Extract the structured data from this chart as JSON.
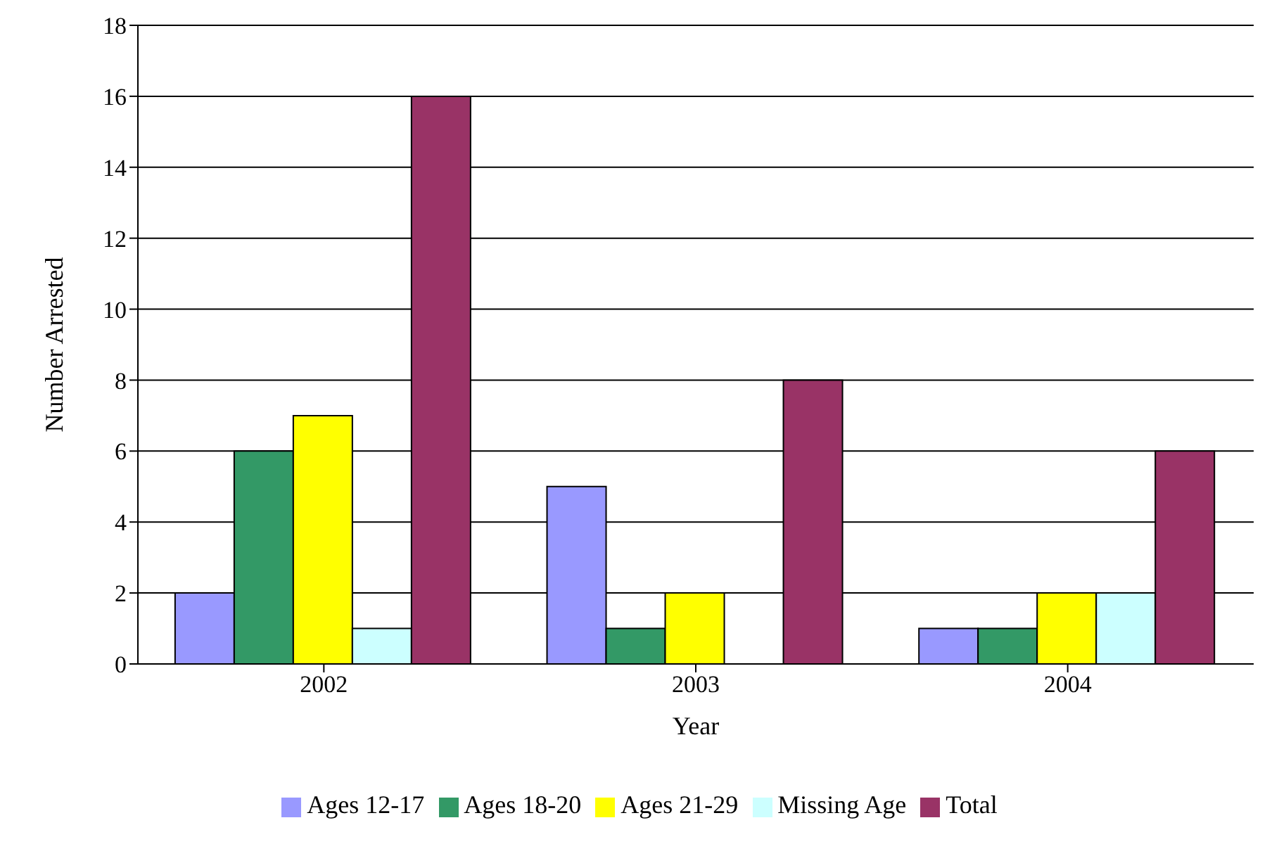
{
  "chart_data": {
    "type": "bar",
    "xlabel": "Year",
    "ylabel": "Number Arrested",
    "categories": [
      "2002",
      "2003",
      "2004"
    ],
    "series": [
      {
        "name": "Ages 12-17",
        "color": "#9999ff",
        "values": [
          2,
          5,
          1
        ]
      },
      {
        "name": "Ages 18-20",
        "color": "#339966",
        "values": [
          6,
          1,
          1
        ]
      },
      {
        "name": "Ages 21-29",
        "color": "#ffff00",
        "values": [
          7,
          2,
          2
        ]
      },
      {
        "name": "Missing Age",
        "color": "#ccffff",
        "values": [
          1,
          0,
          2
        ]
      },
      {
        "name": "Total",
        "color": "#993366",
        "values": [
          16,
          8,
          6
        ]
      }
    ],
    "ylim": [
      0,
      18
    ],
    "yticks": [
      0,
      2,
      4,
      6,
      8,
      10,
      12,
      14,
      16,
      18
    ],
    "grid": "y",
    "legend": "bottom"
  }
}
